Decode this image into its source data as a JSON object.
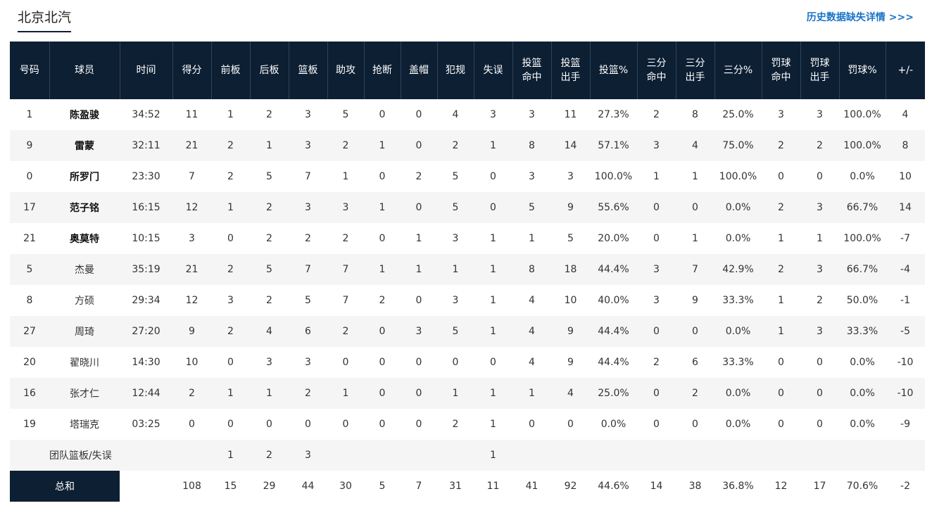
{
  "team_tab": "北京北汽",
  "history_link": "历史数据缺失详情 >>>",
  "columns": [
    "号码",
    "球员",
    "时间",
    "得分",
    "前板",
    "后板",
    "篮板",
    "助攻",
    "抢断",
    "盖帽",
    "犯规",
    "失误",
    "投篮\n命中",
    "投篮\n出手",
    "投篮%",
    "三分\n命中",
    "三分\n出手",
    "三分%",
    "罚球\n命中",
    "罚球\n出手",
    "罚球%",
    "+/-"
  ],
  "players": [
    {
      "starter": true,
      "cells": [
        "1",
        "陈盈骏",
        "34:52",
        "11",
        "1",
        "2",
        "3",
        "5",
        "0",
        "0",
        "4",
        "3",
        "3",
        "11",
        "27.3%",
        "2",
        "8",
        "25.0%",
        "3",
        "3",
        "100.0%",
        "4"
      ]
    },
    {
      "starter": true,
      "cells": [
        "9",
        "雷蒙",
        "32:11",
        "21",
        "2",
        "1",
        "3",
        "2",
        "1",
        "0",
        "2",
        "1",
        "8",
        "14",
        "57.1%",
        "3",
        "4",
        "75.0%",
        "2",
        "2",
        "100.0%",
        "8"
      ]
    },
    {
      "starter": true,
      "cells": [
        "0",
        "所罗门",
        "23:30",
        "7",
        "2",
        "5",
        "7",
        "1",
        "0",
        "2",
        "5",
        "0",
        "3",
        "3",
        "100.0%",
        "1",
        "1",
        "100.0%",
        "0",
        "0",
        "0.0%",
        "10"
      ]
    },
    {
      "starter": true,
      "cells": [
        "17",
        "范子铭",
        "16:15",
        "12",
        "1",
        "2",
        "3",
        "3",
        "1",
        "0",
        "5",
        "0",
        "5",
        "9",
        "55.6%",
        "0",
        "0",
        "0.0%",
        "2",
        "3",
        "66.7%",
        "14"
      ]
    },
    {
      "starter": true,
      "cells": [
        "21",
        "奥莫特",
        "10:15",
        "3",
        "0",
        "2",
        "2",
        "2",
        "0",
        "1",
        "3",
        "1",
        "1",
        "5",
        "20.0%",
        "0",
        "1",
        "0.0%",
        "1",
        "1",
        "100.0%",
        "-7"
      ]
    },
    {
      "starter": false,
      "cells": [
        "5",
        "杰曼",
        "35:19",
        "21",
        "2",
        "5",
        "7",
        "7",
        "1",
        "1",
        "1",
        "1",
        "8",
        "18",
        "44.4%",
        "3",
        "7",
        "42.9%",
        "2",
        "3",
        "66.7%",
        "-4"
      ]
    },
    {
      "starter": false,
      "cells": [
        "8",
        "方硕",
        "29:34",
        "12",
        "3",
        "2",
        "5",
        "7",
        "2",
        "0",
        "3",
        "1",
        "4",
        "10",
        "40.0%",
        "3",
        "9",
        "33.3%",
        "1",
        "2",
        "50.0%",
        "-1"
      ]
    },
    {
      "starter": false,
      "cells": [
        "27",
        "周琦",
        "27:20",
        "9",
        "2",
        "4",
        "6",
        "2",
        "0",
        "3",
        "5",
        "1",
        "4",
        "9",
        "44.4%",
        "0",
        "0",
        "0.0%",
        "1",
        "3",
        "33.3%",
        "-5"
      ]
    },
    {
      "starter": false,
      "cells": [
        "20",
        "翟晓川",
        "14:30",
        "10",
        "0",
        "3",
        "3",
        "0",
        "0",
        "0",
        "0",
        "0",
        "4",
        "9",
        "44.4%",
        "2",
        "6",
        "33.3%",
        "0",
        "0",
        "0.0%",
        "-10"
      ]
    },
    {
      "starter": false,
      "cells": [
        "16",
        "张才仁",
        "12:44",
        "2",
        "1",
        "1",
        "2",
        "1",
        "0",
        "0",
        "1",
        "1",
        "1",
        "4",
        "25.0%",
        "0",
        "2",
        "0.0%",
        "0",
        "0",
        "0.0%",
        "-10"
      ]
    },
    {
      "starter": false,
      "cells": [
        "19",
        "塔瑞克",
        "03:25",
        "0",
        "0",
        "0",
        "0",
        "0",
        "0",
        "0",
        "2",
        "1",
        "0",
        "0",
        "0.0%",
        "0",
        "0",
        "0.0%",
        "0",
        "0",
        "0.0%",
        "-9"
      ]
    }
  ],
  "team_rebounds": {
    "label": "团队篮板/失误",
    "off_reb": "1",
    "def_reb": "2",
    "reb": "3",
    "turnovers": "1"
  },
  "totals": {
    "label": "总和",
    "cells": [
      "",
      "108",
      "15",
      "29",
      "44",
      "30",
      "5",
      "7",
      "31",
      "11",
      "41",
      "92",
      "44.6%",
      "14",
      "38",
      "36.8%",
      "12",
      "17",
      "70.6%",
      "-2"
    ]
  },
  "colors": {
    "header_bg": "#0d1f33",
    "alt_row": "#f5f5f5",
    "link": "#1a73c8"
  }
}
